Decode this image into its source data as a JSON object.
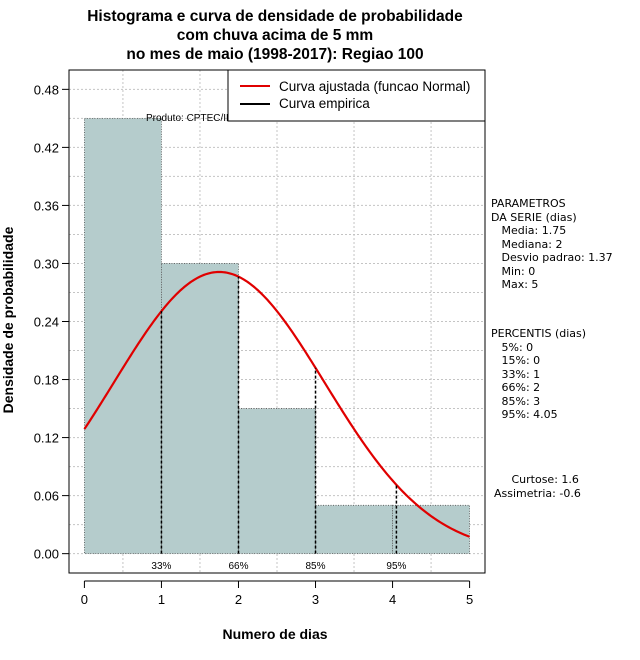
{
  "chart_data": {
    "type": "bar",
    "title": [
      "Histograma e curva de densidade de probabilidade",
      "com chuva acima de 5 mm",
      "no mes de maio (1998-2017): Regiao 100"
    ],
    "xlabel": "Numero de dias",
    "ylabel": "Densidade de probabilidade",
    "xlim": [
      -0.2,
      5.2
    ],
    "ylim": [
      -0.02,
      0.5
    ],
    "xticks": [
      "0",
      "1",
      "2",
      "3",
      "4",
      "5"
    ],
    "yticks": [
      "0.00",
      "0.06",
      "0.12",
      "0.18",
      "0.24",
      "0.30",
      "0.36",
      "0.42",
      "0.48"
    ],
    "bins": [
      {
        "from": 0,
        "to": 1,
        "density": 0.45
      },
      {
        "from": 1,
        "to": 2,
        "density": 0.3
      },
      {
        "from": 2,
        "to": 3,
        "density": 0.15
      },
      {
        "from": 3,
        "to": 4,
        "density": 0.05
      },
      {
        "from": 4,
        "to": 5,
        "density": 0.05
      }
    ],
    "fitted_curve": {
      "name": "Curva ajustada (funcao Normal)",
      "mean": 1.75,
      "sd": 1.37,
      "color": "#e00000"
    },
    "empirical_curve": {
      "name": "Curva empirica",
      "color": "#000000"
    },
    "percentile_markers": [
      {
        "label": "33%",
        "x": 1
      },
      {
        "label": "66%",
        "x": 2
      },
      {
        "label": "85%",
        "x": 3
      },
      {
        "label": "95%",
        "x": 4.05
      }
    ],
    "annotation": "Produto: CPTEC/INPE",
    "bar_color": "#b5cccc",
    "grid": true,
    "legend_position": "top-right"
  },
  "sidebar": {
    "parametros": [
      "PARAMETROS",
      "DA SERIE (dias)",
      "   Media: 1.75",
      "   Mediana: 2",
      "   Desvio padrao: 1.37",
      "   Min: 0",
      "   Max: 5"
    ],
    "percentis": [
      "PERCENTIS (dias)",
      "   5%: 0",
      "   15%: 0",
      "   33%: 1",
      "   66%: 2",
      "   85%: 3",
      "   95%: 4.05"
    ],
    "stats": [
      "     Curtose: 1.6",
      "Assimetria: -0.6"
    ]
  }
}
